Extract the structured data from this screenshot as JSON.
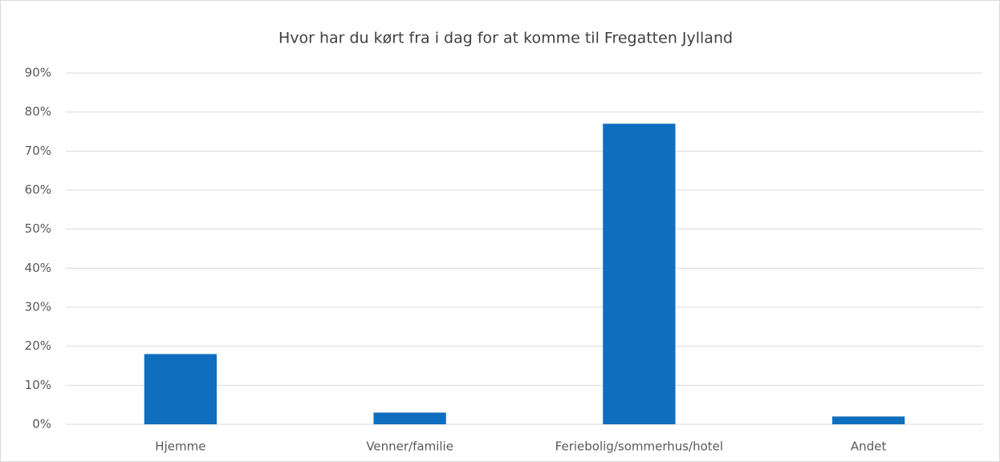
{
  "chart_data": {
    "type": "bar",
    "title": "Hvor har du kørt fra i dag for at komme til Fregatten Jylland",
    "categories": [
      "Hjemme",
      "Venner/familie",
      "Feriebolig/sommerhus/hotel",
      "Andet"
    ],
    "values": [
      18,
      3,
      77,
      2
    ],
    "color": "#106ebe",
    "ylim": [
      0,
      90
    ],
    "yticks": [
      {
        "value": 0,
        "label": "0%"
      },
      {
        "value": 10,
        "label": "10%"
      },
      {
        "value": 20,
        "label": "20%"
      },
      {
        "value": 30,
        "label": "30%"
      },
      {
        "value": 40,
        "label": "40%"
      },
      {
        "value": 50,
        "label": "50%"
      },
      {
        "value": 60,
        "label": "60%"
      },
      {
        "value": 70,
        "label": "70%"
      },
      {
        "value": 80,
        "label": "80%"
      },
      {
        "value": 90,
        "label": "90%"
      }
    ],
    "grid": true
  }
}
